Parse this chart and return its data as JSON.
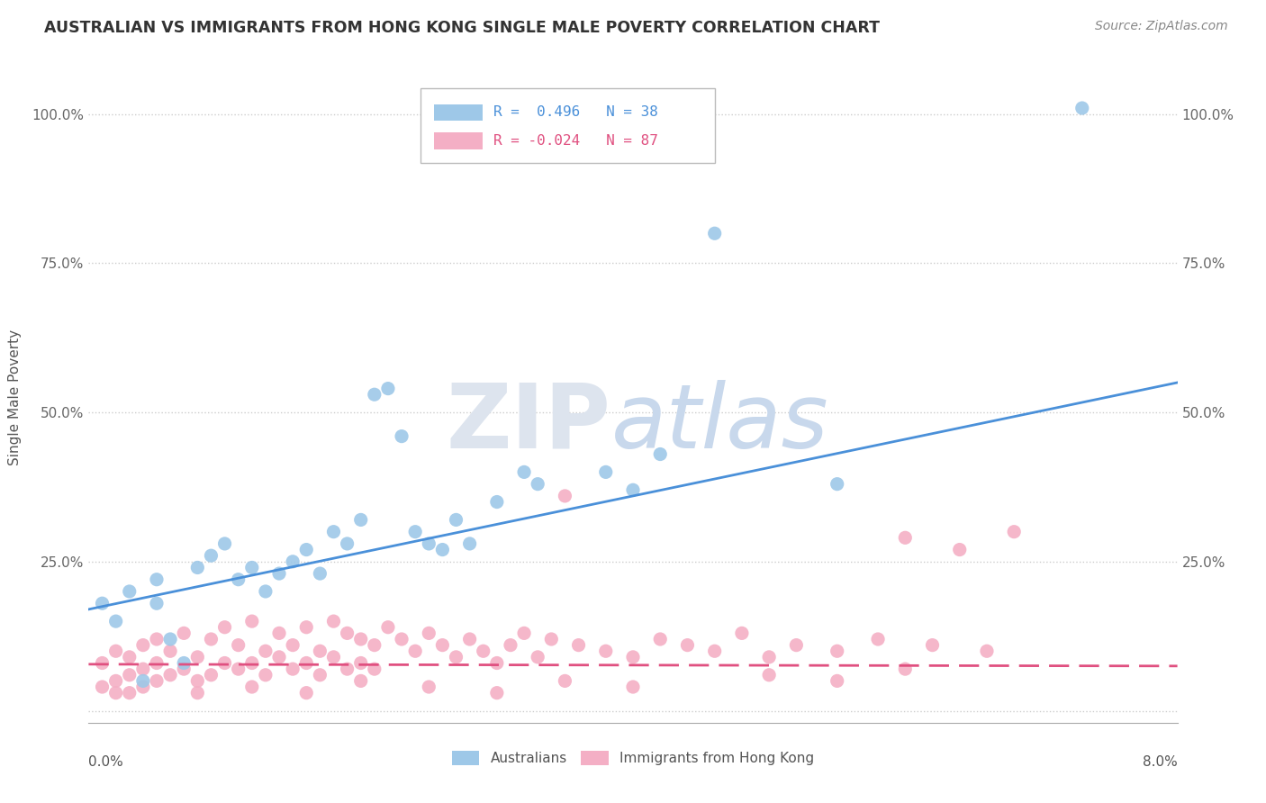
{
  "title": "AUSTRALIAN VS IMMIGRANTS FROM HONG KONG SINGLE MALE POVERTY CORRELATION CHART",
  "source": "Source: ZipAtlas.com",
  "ylabel": "Single Male Poverty",
  "yticks": [
    0.0,
    0.25,
    0.5,
    0.75,
    1.0
  ],
  "ytick_labels": [
    "",
    "25.0%",
    "50.0%",
    "75.0%",
    "100.0%"
  ],
  "legend1_label": "R =  0.496   N = 38",
  "legend2_label": "R = -0.024   N = 87",
  "australians_color": "#9ec8e8",
  "immigrants_color": "#f4afc5",
  "regression_aus_color": "#4a90d9",
  "regression_imm_color": "#e05080",
  "watermark_zip_color": "#dde4ee",
  "watermark_atlas_color": "#c8d8ec",
  "background_color": "#ffffff",
  "xlim": [
    0.0,
    0.08
  ],
  "ylim": [
    -0.02,
    1.07
  ],
  "aus_points_x": [
    0.001,
    0.002,
    0.003,
    0.004,
    0.005,
    0.005,
    0.006,
    0.007,
    0.008,
    0.009,
    0.01,
    0.011,
    0.012,
    0.013,
    0.014,
    0.015,
    0.016,
    0.017,
    0.018,
    0.019,
    0.02,
    0.021,
    0.022,
    0.023,
    0.024,
    0.025,
    0.026,
    0.027,
    0.028,
    0.03,
    0.032,
    0.033,
    0.038,
    0.04,
    0.042,
    0.046,
    0.055,
    0.073
  ],
  "aus_points_y": [
    0.18,
    0.15,
    0.2,
    0.05,
    0.22,
    0.18,
    0.12,
    0.08,
    0.24,
    0.26,
    0.28,
    0.22,
    0.24,
    0.2,
    0.23,
    0.25,
    0.27,
    0.23,
    0.3,
    0.28,
    0.32,
    0.53,
    0.54,
    0.46,
    0.3,
    0.28,
    0.27,
    0.32,
    0.28,
    0.35,
    0.4,
    0.38,
    0.4,
    0.37,
    0.43,
    0.8,
    0.38,
    1.01
  ],
  "imm_points_x": [
    0.001,
    0.001,
    0.002,
    0.002,
    0.003,
    0.003,
    0.004,
    0.004,
    0.005,
    0.005,
    0.005,
    0.006,
    0.006,
    0.007,
    0.007,
    0.008,
    0.008,
    0.009,
    0.009,
    0.01,
    0.01,
    0.011,
    0.011,
    0.012,
    0.012,
    0.013,
    0.013,
    0.014,
    0.014,
    0.015,
    0.015,
    0.016,
    0.016,
    0.017,
    0.017,
    0.018,
    0.018,
    0.019,
    0.019,
    0.02,
    0.02,
    0.021,
    0.021,
    0.022,
    0.023,
    0.024,
    0.025,
    0.026,
    0.027,
    0.028,
    0.029,
    0.03,
    0.031,
    0.032,
    0.033,
    0.034,
    0.035,
    0.036,
    0.038,
    0.04,
    0.042,
    0.044,
    0.046,
    0.048,
    0.05,
    0.052,
    0.055,
    0.058,
    0.06,
    0.062,
    0.064,
    0.066,
    0.068,
    0.002,
    0.003,
    0.004,
    0.008,
    0.012,
    0.016,
    0.02,
    0.025,
    0.03,
    0.035,
    0.04,
    0.05,
    0.055,
    0.06
  ],
  "imm_points_y": [
    0.04,
    0.08,
    0.05,
    0.1,
    0.06,
    0.09,
    0.07,
    0.11,
    0.05,
    0.08,
    0.12,
    0.06,
    0.1,
    0.07,
    0.13,
    0.05,
    0.09,
    0.06,
    0.12,
    0.08,
    0.14,
    0.07,
    0.11,
    0.08,
    0.15,
    0.06,
    0.1,
    0.09,
    0.13,
    0.07,
    0.11,
    0.08,
    0.14,
    0.06,
    0.1,
    0.09,
    0.15,
    0.07,
    0.13,
    0.08,
    0.12,
    0.07,
    0.11,
    0.14,
    0.12,
    0.1,
    0.13,
    0.11,
    0.09,
    0.12,
    0.1,
    0.08,
    0.11,
    0.13,
    0.09,
    0.12,
    0.36,
    0.11,
    0.1,
    0.09,
    0.12,
    0.11,
    0.1,
    0.13,
    0.09,
    0.11,
    0.1,
    0.12,
    0.29,
    0.11,
    0.27,
    0.1,
    0.3,
    0.03,
    0.03,
    0.04,
    0.03,
    0.04,
    0.03,
    0.05,
    0.04,
    0.03,
    0.05,
    0.04,
    0.06,
    0.05,
    0.07
  ]
}
